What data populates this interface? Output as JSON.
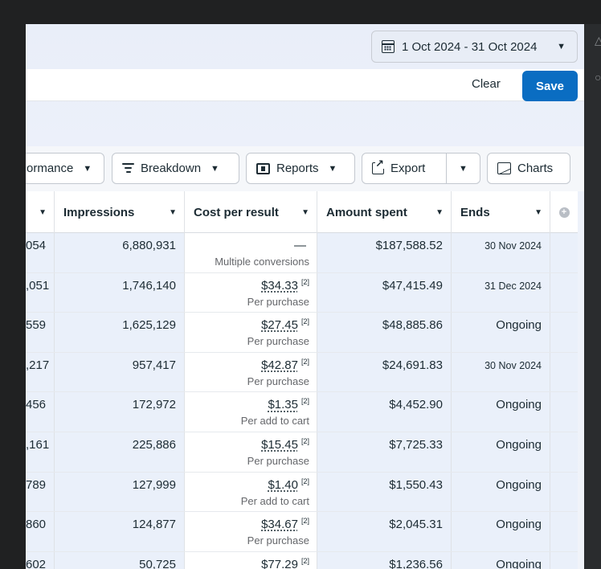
{
  "date_range": {
    "label": "1 Oct 2024 - 31 Oct 2024"
  },
  "filter": {
    "clear_label": "Clear",
    "save_label": "Save"
  },
  "toolbar": {
    "performance_label": "ormance",
    "breakdown_label": "Breakdown",
    "reports_label": "Reports",
    "export_label": "Export",
    "charts_label": "Charts"
  },
  "columns": {
    "impressions": "Impressions",
    "cost_per_result": "Cost per result",
    "amount_spent": "Amount spent",
    "ends": "Ends"
  },
  "rows": [
    {
      "partial": "054",
      "impressions": "6,880,931",
      "cpr": "—",
      "cpr_note": "",
      "cpr_sub": "Multiple conversions",
      "amount": "$187,588.52",
      "ends": "30 Nov 2024"
    },
    {
      "partial": ",051",
      "impressions": "1,746,140",
      "cpr": "$34.33",
      "cpr_note": "[2]",
      "cpr_sub": "Per purchase",
      "amount": "$47,415.49",
      "ends": "31 Dec 2024"
    },
    {
      "partial": "559",
      "impressions": "1,625,129",
      "cpr": "$27.45",
      "cpr_note": "[2]",
      "cpr_sub": "Per purchase",
      "amount": "$48,885.86",
      "ends": "Ongoing"
    },
    {
      "partial": ",217",
      "impressions": "957,417",
      "cpr": "$42.87",
      "cpr_note": "[2]",
      "cpr_sub": "Per purchase",
      "amount": "$24,691.83",
      "ends": "30 Nov 2024"
    },
    {
      "partial": "456",
      "impressions": "172,972",
      "cpr": "$1.35",
      "cpr_note": "[2]",
      "cpr_sub": "Per add to cart",
      "amount": "$4,452.90",
      "ends": "Ongoing"
    },
    {
      "partial": ",161",
      "impressions": "225,886",
      "cpr": "$15.45",
      "cpr_note": "[2]",
      "cpr_sub": "Per purchase",
      "amount": "$7,725.33",
      "ends": "Ongoing"
    },
    {
      "partial": "789",
      "impressions": "127,999",
      "cpr": "$1.40",
      "cpr_note": "[2]",
      "cpr_sub": "Per add to cart",
      "amount": "$1,550.43",
      "ends": "Ongoing"
    },
    {
      "partial": "860",
      "impressions": "124,877",
      "cpr": "$34.67",
      "cpr_note": "[2]",
      "cpr_sub": "Per purchase",
      "amount": "$2,045.31",
      "ends": "Ongoing"
    },
    {
      "partial": "602",
      "impressions": "50,725",
      "cpr": "$77.29",
      "cpr_note": "[2]",
      "cpr_sub": "",
      "amount": "$1,236.56",
      "ends": "Ongoing"
    }
  ],
  "icons": {
    "calendar": "calendar-icon",
    "breakdown": "breakdown-icon",
    "reports": "reports-icon",
    "export": "export-icon",
    "charts": "chart-icon",
    "add_column": "add-column-icon"
  },
  "colors": {
    "primary": "#0a6dc2",
    "selected_row": "#eaf0fa"
  }
}
